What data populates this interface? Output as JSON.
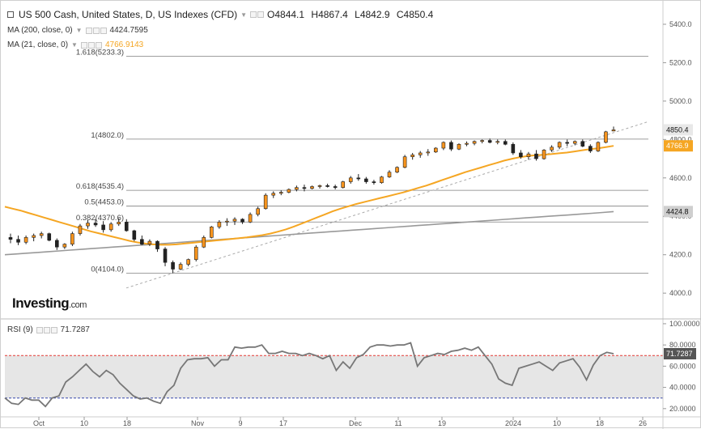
{
  "header": {
    "title": "US 500 Cash, United States, D, US Indexes (CFD)",
    "ohlc": {
      "o": "O4844.1",
      "h": "H4867.4",
      "l": "L4842.9",
      "c": "C4850.4"
    },
    "ma200_label": "MA (200, close, 0)",
    "ma200_value": "4424.7595",
    "ma21_label": "MA (21, close, 0)",
    "ma21_value": "4766.9143",
    "rsi_label": "RSI (9)",
    "rsi_value": "71.7287"
  },
  "logo": {
    "text": "Investing",
    "suffix": ".com"
  },
  "colors": {
    "ma21": "#f5a623",
    "ma200": "#999999",
    "up": "#f7941d",
    "down": "#222222",
    "rsi": "#777777",
    "rsi_upper": "#e53935",
    "rsi_lower": "#3949ab",
    "last_price_tag": "#e8e8e8",
    "ma21_tag": "#f5a623"
  },
  "chart_data": [
    {
      "type": "candlestick",
      "title": "US 500 Cash, United States, D, US Indexes (CFD)",
      "yticks": [
        4000,
        4200,
        4400,
        4600,
        4800,
        5000,
        5200,
        5400
      ],
      "ylim": [
        3870,
        5480
      ],
      "xticks": [
        "Oct",
        "10",
        "18",
        "Nov",
        "9",
        "17",
        "Dec",
        "11",
        "19",
        "2024",
        "10",
        "18",
        "26"
      ],
      "fib_levels": [
        {
          "label": "1.618(5233.3)",
          "value": 5233.3
        },
        {
          "label": "1(4802.0)",
          "value": 4802.0
        },
        {
          "label": "0.618(4535.4)",
          "value": 4535.4
        },
        {
          "label": "0.5(4453.0)",
          "value": 4453.0
        },
        {
          "label": "0.382(4370.6)",
          "value": 4370.6
        },
        {
          "label": "0(4104.0)",
          "value": 4104.0
        }
      ],
      "candles_ohlc": [
        [
          4290,
          4310,
          4260,
          4280
        ],
        [
          4280,
          4300,
          4250,
          4265
        ],
        [
          4265,
          4300,
          4255,
          4290
        ],
        [
          4290,
          4310,
          4270,
          4300
        ],
        [
          4300,
          4320,
          4285,
          4310
        ],
        [
          4310,
          4315,
          4270,
          4275
        ],
        [
          4275,
          4285,
          4225,
          4240
        ],
        [
          4240,
          4260,
          4230,
          4255
        ],
        [
          4255,
          4320,
          4245,
          4310
        ],
        [
          4310,
          4360,
          4300,
          4350
        ],
        [
          4350,
          4380,
          4335,
          4365
        ],
        [
          4365,
          4385,
          4345,
          4355
        ],
        [
          4355,
          4375,
          4315,
          4330
        ],
        [
          4330,
          4370,
          4320,
          4360
        ],
        [
          4360,
          4390,
          4350,
          4370
        ],
        [
          4370,
          4385,
          4320,
          4325
        ],
        [
          4325,
          4330,
          4270,
          4280
        ],
        [
          4280,
          4300,
          4250,
          4255
        ],
        [
          4255,
          4280,
          4245,
          4270
        ],
        [
          4270,
          4275,
          4215,
          4230
        ],
        [
          4230,
          4240,
          4140,
          4160
        ],
        [
          4160,
          4170,
          4104,
          4125
        ],
        [
          4125,
          4160,
          4120,
          4150
        ],
        [
          4150,
          4180,
          4140,
          4175
        ],
        [
          4175,
          4250,
          4165,
          4240
        ],
        [
          4240,
          4300,
          4235,
          4290
        ],
        [
          4290,
          4350,
          4285,
          4345
        ],
        [
          4345,
          4380,
          4335,
          4370
        ],
        [
          4370,
          4390,
          4350,
          4375
        ],
        [
          4375,
          4395,
          4355,
          4385
        ],
        [
          4385,
          4390,
          4360,
          4370
        ],
        [
          4370,
          4420,
          4365,
          4410
        ],
        [
          4410,
          4450,
          4400,
          4440
        ],
        [
          4440,
          4520,
          4435,
          4510
        ],
        [
          4510,
          4530,
          4495,
          4520
        ],
        [
          4520,
          4535,
          4510,
          4525
        ],
        [
          4525,
          4545,
          4520,
          4540
        ],
        [
          4540,
          4560,
          4530,
          4550
        ],
        [
          4550,
          4565,
          4530,
          4545
        ],
        [
          4545,
          4560,
          4540,
          4555
        ],
        [
          4555,
          4565,
          4545,
          4560
        ],
        [
          4560,
          4570,
          4550,
          4555
        ],
        [
          4555,
          4565,
          4540,
          4550
        ],
        [
          4550,
          4585,
          4545,
          4580
        ],
        [
          4580,
          4610,
          4570,
          4600
        ],
        [
          4600,
          4620,
          4585,
          4595
        ],
        [
          4595,
          4605,
          4570,
          4580
        ],
        [
          4580,
          4590,
          4565,
          4575
        ],
        [
          4575,
          4610,
          4570,
          4605
        ],
        [
          4605,
          4640,
          4600,
          4630
        ],
        [
          4630,
          4660,
          4625,
          4655
        ],
        [
          4655,
          4720,
          4650,
          4710
        ],
        [
          4710,
          4730,
          4695,
          4720
        ],
        [
          4720,
          4740,
          4705,
          4730
        ],
        [
          4730,
          4750,
          4715,
          4735
        ],
        [
          4735,
          4760,
          4730,
          4755
        ],
        [
          4755,
          4790,
          4745,
          4785
        ],
        [
          4785,
          4795,
          4740,
          4750
        ],
        [
          4750,
          4780,
          4745,
          4775
        ],
        [
          4775,
          4790,
          4765,
          4780
        ],
        [
          4780,
          4795,
          4770,
          4790
        ],
        [
          4790,
          4800,
          4780,
          4795
        ],
        [
          4795,
          4805,
          4780,
          4785
        ],
        [
          4785,
          4800,
          4775,
          4790
        ],
        [
          4790,
          4800,
          4770,
          4775
        ],
        [
          4775,
          4785,
          4720,
          4730
        ],
        [
          4730,
          4745,
          4700,
          4710
        ],
        [
          4710,
          4735,
          4695,
          4725
        ],
        [
          4725,
          4745,
          4690,
          4700
        ],
        [
          4700,
          4750,
          4695,
          4745
        ],
        [
          4745,
          4770,
          4735,
          4760
        ],
        [
          4760,
          4790,
          4750,
          4785
        ],
        [
          4785,
          4800,
          4765,
          4780
        ],
        [
          4780,
          4795,
          4770,
          4790
        ],
        [
          4790,
          4800,
          4760,
          4765
        ],
        [
          4765,
          4775,
          4730,
          4740
        ],
        [
          4740,
          4790,
          4735,
          4785
        ],
        [
          4785,
          4845,
          4780,
          4840
        ],
        [
          4844.1,
          4867.4,
          4842.9,
          4850.4
        ]
      ],
      "ma21_values": [
        4450,
        4440,
        4430,
        4418,
        4406,
        4394,
        4382,
        4370,
        4358,
        4346,
        4334,
        4322,
        4312,
        4302,
        4292,
        4282,
        4272,
        4264,
        4258,
        4254,
        4252,
        4252,
        4254,
        4258,
        4262,
        4266,
        4270,
        4274,
        4278,
        4282,
        4286,
        4290,
        4296,
        4302,
        4310,
        4320,
        4332,
        4346,
        4362,
        4378,
        4394,
        4410,
        4426,
        4440,
        4452,
        4464,
        4474,
        4484,
        4494,
        4504,
        4514,
        4524,
        4536,
        4548,
        4560,
        4574,
        4588,
        4602,
        4616,
        4630,
        4642,
        4654,
        4666,
        4678,
        4690,
        4700,
        4708,
        4714,
        4718,
        4720,
        4724,
        4728,
        4732,
        4738,
        4744,
        4750,
        4754,
        4760,
        4766.9
      ],
      "ma200_values": [
        4200,
        4204,
        4208,
        4212,
        4216,
        4220,
        4224,
        4228,
        4232,
        4236,
        4240,
        4244,
        4248,
        4252,
        4256,
        4260,
        4264,
        4268,
        4272,
        4276,
        4280,
        4284,
        4288,
        4292,
        4296,
        4300,
        4304,
        4308,
        4312,
        4316,
        4320,
        4324,
        4328,
        4332,
        4336,
        4340,
        4344,
        4348,
        4352,
        4356,
        4360,
        4364,
        4368,
        4372,
        4376,
        4380,
        4384,
        4388,
        4392,
        4396,
        4400,
        4404,
        4408,
        4412,
        4416,
        4420,
        4424.7595
      ],
      "last_close": "4850.4",
      "ma21_last": "4766.9",
      "ma200_last": "4424.8"
    },
    {
      "type": "line",
      "title": "RSI (9)",
      "yticks": [
        20,
        40,
        60,
        80,
        100
      ],
      "yticklabels": [
        "20.0000",
        "40.0000",
        "60.0000",
        "80.0000",
        "100.0000"
      ],
      "ylim": [
        13,
        103
      ],
      "levels": [
        70,
        30
      ],
      "values": [
        30,
        25,
        24,
        30,
        28,
        28,
        22,
        30,
        32,
        45,
        50,
        56,
        62,
        55,
        50,
        56,
        52,
        44,
        38,
        32,
        29,
        30,
        27,
        25,
        36,
        42,
        58,
        66,
        67,
        67,
        68,
        60,
        66,
        66,
        78,
        77,
        78,
        78,
        80,
        72,
        72,
        74,
        72,
        72,
        70,
        72,
        70,
        67,
        70,
        56,
        64,
        58,
        68,
        71,
        78,
        80,
        80,
        79,
        80,
        80,
        82,
        60,
        68,
        70,
        72,
        71,
        74,
        75,
        77,
        75,
        78,
        70,
        62,
        48,
        44,
        42,
        58,
        60,
        62,
        64,
        60,
        56,
        63,
        65,
        67,
        59,
        47,
        61,
        70,
        73,
        71.7
      ]
    }
  ]
}
